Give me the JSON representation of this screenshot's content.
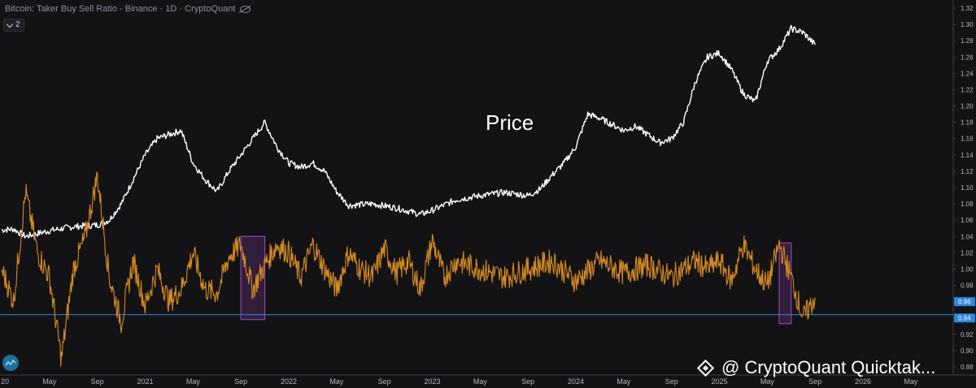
{
  "header": {
    "title": "Bitcoin: Taker Buy Sell Ratio - Binance · 1D · CryptoQuant",
    "collapse_count": "2"
  },
  "annotation": {
    "price_label": "Price"
  },
  "watermark": {
    "text": "@ CryptoQuant Quicktak..."
  },
  "icons": {
    "visibility": "eye-off-icon",
    "logo": "cryptoquant-logo-icon",
    "watermark": "binance-diamond-icon"
  },
  "colors": {
    "background": "#131316",
    "price_line": "#ffffff",
    "ratio_line": "#d68a22",
    "reference_line": "#2e86de",
    "highlight_box": "#8e44ad",
    "badge_blue": "#2e86de"
  },
  "chart_data": {
    "type": "line",
    "title": "Bitcoin: Taker Buy Sell Ratio - Binance · 1D · CryptoQuant",
    "x_tick_labels": [
      "20",
      "May",
      "Sep",
      "2021",
      "May",
      "Sep",
      "2022",
      "May",
      "Sep",
      "2023",
      "May",
      "Sep",
      "2024",
      "May",
      "Sep",
      "2025",
      "May",
      "Sep",
      "2026",
      "May"
    ],
    "y_tick_labels": [
      "0.88",
      "0.90",
      "0.92",
      "0.94",
      "0.96",
      "0.98",
      "1.00",
      "1.02",
      "1.04",
      "1.06",
      "1.08",
      "1.10",
      "1.12",
      "1.14",
      "1.16",
      "1.18",
      "1.20",
      "1.22",
      "1.24",
      "1.26",
      "1.28",
      "1.30",
      "1.32"
    ],
    "ylim": [
      0.87,
      1.33
    ],
    "grid": false,
    "x_range": [
      "2020-01",
      "2026-08"
    ],
    "series": [
      {
        "name": "Price",
        "values": [
          [
            "2020-01",
            1.048
          ],
          [
            "2020-02",
            1.049
          ],
          [
            "2020-03",
            1.04
          ],
          [
            "2020-05",
            1.047
          ],
          [
            "2020-07",
            1.052
          ],
          [
            "2020-09",
            1.054
          ],
          [
            "2020-10",
            1.06
          ],
          [
            "2020-11",
            1.08
          ],
          [
            "2020-12",
            1.11
          ],
          [
            "2021-01",
            1.14
          ],
          [
            "2021-02",
            1.16
          ],
          [
            "2021-03",
            1.165
          ],
          [
            "2021-04",
            1.17
          ],
          [
            "2021-05",
            1.13
          ],
          [
            "2021-06",
            1.11
          ],
          [
            "2021-07",
            1.095
          ],
          [
            "2021-08",
            1.12
          ],
          [
            "2021-09",
            1.14
          ],
          [
            "2021-10",
            1.16
          ],
          [
            "2021-11",
            1.18
          ],
          [
            "2021-12",
            1.15
          ],
          [
            "2022-01",
            1.13
          ],
          [
            "2022-02",
            1.125
          ],
          [
            "2022-03",
            1.13
          ],
          [
            "2022-04",
            1.12
          ],
          [
            "2022-05",
            1.095
          ],
          [
            "2022-06",
            1.078
          ],
          [
            "2022-08",
            1.08
          ],
          [
            "2022-10",
            1.075
          ],
          [
            "2022-12",
            1.067
          ],
          [
            "2023-01",
            1.072
          ],
          [
            "2023-03",
            1.085
          ],
          [
            "2023-05",
            1.09
          ],
          [
            "2023-07",
            1.094
          ],
          [
            "2023-09",
            1.09
          ],
          [
            "2023-10",
            1.098
          ],
          [
            "2023-11",
            1.115
          ],
          [
            "2023-12",
            1.13
          ],
          [
            "2024-01",
            1.15
          ],
          [
            "2024-02",
            1.19
          ],
          [
            "2024-03",
            1.185
          ],
          [
            "2024-05",
            1.17
          ],
          [
            "2024-06",
            1.175
          ],
          [
            "2024-08",
            1.155
          ],
          [
            "2024-09",
            1.16
          ],
          [
            "2024-10",
            1.18
          ],
          [
            "2024-11",
            1.23
          ],
          [
            "2024-12",
            1.26
          ],
          [
            "2025-01",
            1.265
          ],
          [
            "2025-02",
            1.245
          ],
          [
            "2025-03",
            1.215
          ],
          [
            "2025-04",
            1.205
          ],
          [
            "2025-05",
            1.255
          ],
          [
            "2025-06",
            1.27
          ],
          [
            "2025-07",
            1.295
          ],
          [
            "2025-08",
            1.29
          ],
          [
            "2025-09",
            1.275
          ]
        ]
      },
      {
        "name": "Taker Buy Sell Ratio",
        "values": [
          [
            "2020-01",
            1.0
          ],
          [
            "2020-02",
            0.96
          ],
          [
            "2020-03",
            1.095
          ],
          [
            "2020-04",
            1.02
          ],
          [
            "2020-05",
            0.99
          ],
          [
            "2020-06",
            0.89
          ],
          [
            "2020-07",
            1.0
          ],
          [
            "2020-08",
            1.04
          ],
          [
            "2020-09",
            1.115
          ],
          [
            "2020-10",
            0.99
          ],
          [
            "2020-11",
            0.935
          ],
          [
            "2020-12",
            1.01
          ],
          [
            "2021-01",
            0.955
          ],
          [
            "2021-02",
            1.0
          ],
          [
            "2021-03",
            0.96
          ],
          [
            "2021-04",
            0.975
          ],
          [
            "2021-05",
            1.02
          ],
          [
            "2021-06",
            0.975
          ],
          [
            "2021-07",
            0.97
          ],
          [
            "2021-08",
            1.015
          ],
          [
            "2021-09",
            1.03
          ],
          [
            "2021-10",
            0.975
          ],
          [
            "2021-11",
            1.005
          ],
          [
            "2021-12",
            1.03
          ],
          [
            "2022-01",
            1.02
          ],
          [
            "2022-02",
            0.99
          ],
          [
            "2022-03",
            1.03
          ],
          [
            "2022-04",
            1.0
          ],
          [
            "2022-05",
            0.975
          ],
          [
            "2022-06",
            1.02
          ],
          [
            "2022-07",
            1.0
          ],
          [
            "2022-08",
            0.99
          ],
          [
            "2022-09",
            1.025
          ],
          [
            "2022-10",
            0.995
          ],
          [
            "2022-11",
            1.01
          ],
          [
            "2022-12",
            0.975
          ],
          [
            "2023-01",
            1.035
          ],
          [
            "2023-02",
            0.99
          ],
          [
            "2023-03",
            1.01
          ],
          [
            "2023-05",
            1.0
          ],
          [
            "2023-07",
            0.99
          ],
          [
            "2023-09",
            1.0
          ],
          [
            "2023-11",
            1.01
          ],
          [
            "2024-01",
            0.985
          ],
          [
            "2024-03",
            1.01
          ],
          [
            "2024-05",
            0.995
          ],
          [
            "2024-07",
            1.005
          ],
          [
            "2024-09",
            0.99
          ],
          [
            "2024-11",
            1.01
          ],
          [
            "2024-12",
            1.0
          ],
          [
            "2025-01",
            1.01
          ],
          [
            "2025-02",
            0.985
          ],
          [
            "2025-03",
            1.03
          ],
          [
            "2025-04",
            1.0
          ],
          [
            "2025-05",
            0.98
          ],
          [
            "2025-06",
            1.03
          ],
          [
            "2025-07",
            0.99
          ],
          [
            "2025-08",
            0.94
          ],
          [
            "2025-09",
            0.965
          ]
        ]
      }
    ],
    "reference_line": 0.944,
    "highlight_ranges": [
      {
        "x0": "2021-09",
        "x1": "2021-11",
        "y0": 0.938,
        "y1": 1.04
      },
      {
        "x0": "2025-06",
        "x1": "2025-07",
        "y0": 0.933,
        "y1": 1.032
      }
    ],
    "badges": [
      "0.96",
      "0.94"
    ]
  }
}
